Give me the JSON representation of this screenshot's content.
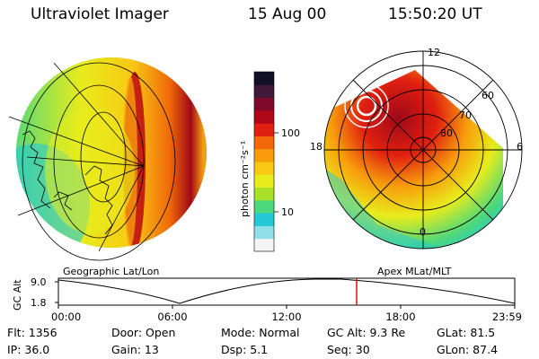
{
  "header": {
    "instrument": "Ultraviolet Imager",
    "date": "15 Aug 00",
    "time": "15:50:20 UT"
  },
  "left_panel": {
    "label": "Geographic Lat/Lon"
  },
  "colorbar": {
    "unit_label": "photon cm⁻²s⁻¹",
    "ticks": [
      "100",
      "10"
    ],
    "colors": [
      "#f4f4f4",
      "#8fe0e8",
      "#24c8d8",
      "#4cd87c",
      "#a8e02c",
      "#e8ec1c",
      "#f8c814",
      "#f89c0c",
      "#f06808",
      "#e02010",
      "#b00818",
      "#800828",
      "#401838",
      "#101028"
    ]
  },
  "right_panel": {
    "label": "Apex MLat/MLT",
    "mlt_labels": [
      "12",
      "18",
      "6",
      "0"
    ],
    "mlat_labels": [
      "60",
      "70",
      "80"
    ]
  },
  "altitude_plot": {
    "ylabel": "GC Alt",
    "y_ticks": [
      "9.0",
      "1.8"
    ],
    "x_ticks": [
      "00:00",
      "06:00",
      "12:00",
      "18:00",
      "23:59"
    ],
    "current_time_marker_color": "#e01010"
  },
  "info": {
    "flt": "Flt:  1356",
    "ip": "IP:  36.0",
    "door": "Door:  Open",
    "gain": "Gain:  13",
    "mode": "Mode:  Normal",
    "dsp": "Dsp:        5.1",
    "gc_alt": "GC Alt:  9.3 Re",
    "seq": "Seq:  30",
    "glat": "GLat:     81.5",
    "glon": "GLon:     87.4"
  }
}
